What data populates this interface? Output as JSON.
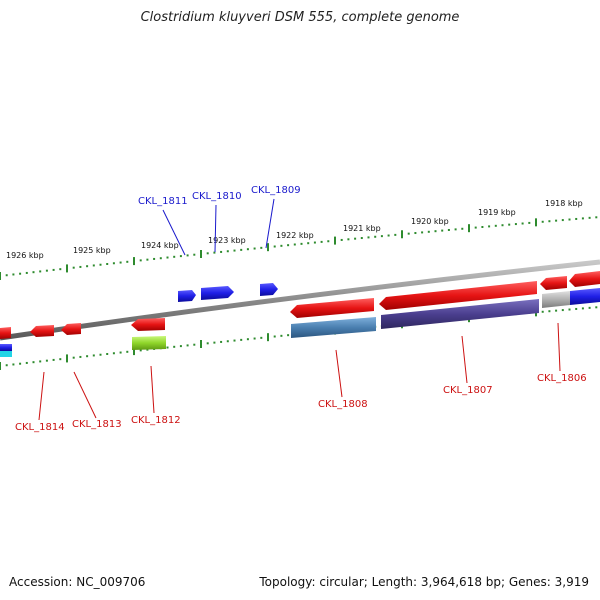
{
  "title": "Clostridium kluyveri DSM 555, complete genome",
  "footer": {
    "accession": "Accession: NC_009706",
    "summary": "Topology: circular; Length: 3,964,618 bp; Genes: 3,919"
  },
  "kbp_labels": [
    "1926 kbp",
    "1925 kbp",
    "1924 kbp",
    "1923 kbp",
    "1922 kbp",
    "1921 kbp",
    "1920 kbp",
    "1919 kbp",
    "1918 kbp"
  ],
  "forward_genes": [
    "CKL_1811",
    "CKL_1810",
    "CKL_1809"
  ],
  "reverse_genes": [
    "CKL_1814",
    "CKL_1813",
    "CKL_1812",
    "CKL_1808",
    "CKL_1807",
    "CKL_1806"
  ],
  "colors": {
    "forward_gene": "#1f1fe6",
    "reverse_gene": "#e61414",
    "backbone": "#8a8a8a",
    "tick": "#2e8b2e",
    "purple_feature": "#4b3f8f",
    "steelblue_feature": "#4a7fb0",
    "lime_feature": "#8fd62a",
    "grey_feature": "#b0b0b0",
    "cyan_feature": "#22d5e6"
  }
}
